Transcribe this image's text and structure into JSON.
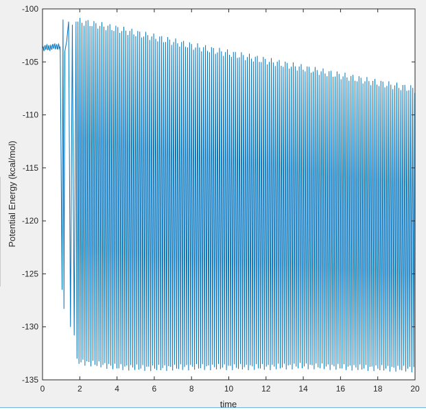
{
  "colors": {
    "line": "#0072BD",
    "axes": "#262626",
    "plot_bg": "#ffffff",
    "window_bg": "#f0f0f0",
    "window_accent": "#6fb3e0"
  },
  "chart_data": {
    "type": "line",
    "title": "",
    "xlabel": "time",
    "ylabel": "Potential Energy (kcal/mol)",
    "xlim": [
      0,
      20
    ],
    "ylim": [
      -135,
      -100
    ],
    "xticks": [
      0,
      2,
      4,
      6,
      8,
      10,
      12,
      14,
      16,
      18,
      20
    ],
    "yticks": [
      -100,
      -105,
      -110,
      -115,
      -120,
      -125,
      -130,
      -135
    ],
    "xtick_labels": [
      "0",
      "2",
      "4",
      "6",
      "8",
      "10",
      "12",
      "14",
      "16",
      "18",
      "20"
    ],
    "ytick_labels": [
      "-100",
      "-105",
      "-110",
      "-115",
      "-120",
      "-125",
      "-130",
      "-135"
    ],
    "grid": false,
    "box": true,
    "series": [
      {
        "description": "Initial stable region then large oscillation (peak-to-trough envelope)",
        "initial_segment": {
          "x": [
            0,
            0.2,
            0.4,
            0.6,
            0.8,
            0.95
          ],
          "y": [
            -103.8,
            -103.6,
            -103.7,
            -103.5,
            -103.6,
            -103.5
          ]
        },
        "transition": {
          "x": [
            0.95,
            1.05,
            1.1,
            1.15,
            1.2,
            1.3,
            1.4,
            1.5,
            1.6,
            1.7,
            1.8
          ],
          "y": [
            -104,
            -126.5,
            -101,
            -128.3,
            -104,
            -103,
            -101.2,
            -130,
            -101.5,
            -130.8,
            -101.2
          ]
        },
        "peak_envelope": {
          "x": [
            2,
            4,
            6,
            8,
            10,
            12,
            14,
            16,
            18,
            20
          ],
          "y": [
            -101.2,
            -101.9,
            -102.7,
            -103.5,
            -104.2,
            -104.9,
            -105.6,
            -106.3,
            -107.0,
            -107.6
          ]
        },
        "trough_envelope": {
          "x": [
            2,
            4,
            6,
            8,
            10,
            12,
            14,
            16,
            18,
            20
          ],
          "y": [
            -133.3,
            -133.8,
            -133.9,
            -133.8,
            -133.8,
            -133.8,
            -133.7,
            -133.8,
            -133.9,
            -134.0
          ]
        },
        "oscillation_period": 0.107
      }
    ]
  }
}
